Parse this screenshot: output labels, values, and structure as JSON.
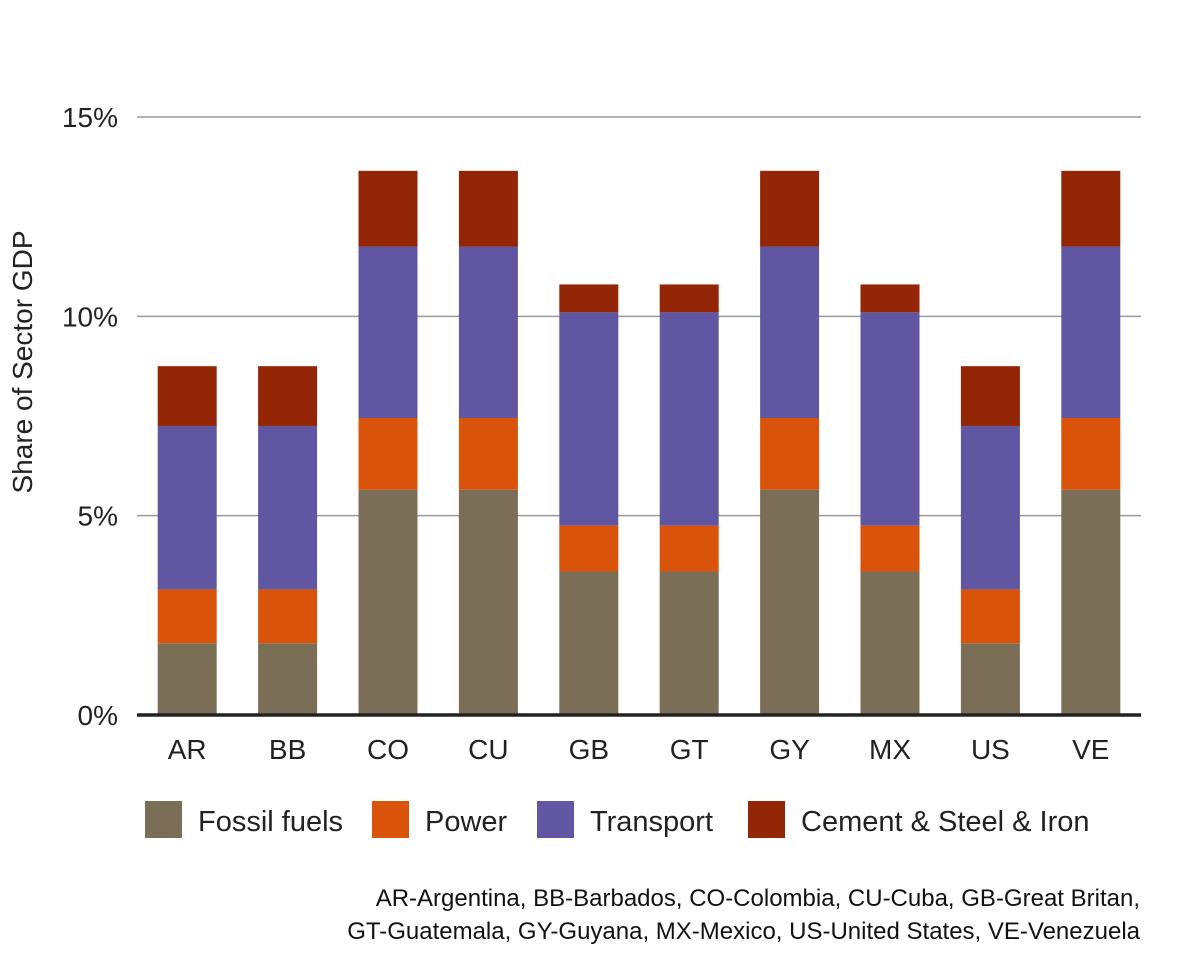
{
  "chart_data": {
    "type": "bar",
    "stacked": true,
    "categories": [
      "AR",
      "BB",
      "CO",
      "CU",
      "GB",
      "GT",
      "GY",
      "MX",
      "US",
      "VE"
    ],
    "series": [
      {
        "name": "Fossil fuels",
        "color": "#7b6e57",
        "values": [
          1.8,
          1.8,
          5.65,
          5.65,
          3.6,
          3.6,
          5.65,
          3.6,
          1.8,
          5.65
        ]
      },
      {
        "name": "Power",
        "color": "#d9540a",
        "values": [
          1.35,
          1.35,
          1.8,
          1.8,
          1.15,
          1.15,
          1.8,
          1.15,
          1.35,
          1.8
        ]
      },
      {
        "name": "Transport",
        "color": "#6156a2",
        "values": [
          4.1,
          4.1,
          4.3,
          4.3,
          5.35,
          5.35,
          4.3,
          5.35,
          4.1,
          4.3
        ]
      },
      {
        "name": "Cement & Steel & Iron",
        "color": "#922607",
        "values": [
          1.5,
          1.5,
          1.9,
          1.9,
          0.7,
          0.7,
          1.9,
          0.7,
          1.5,
          1.9
        ]
      }
    ],
    "title": "",
    "xlabel": "",
    "ylabel": "Share of Sector GDP",
    "ylim": [
      0,
      15
    ],
    "yticks": [
      0,
      5,
      10,
      15
    ],
    "ytick_labels": [
      "0%",
      "5%",
      "10%",
      "15%"
    ],
    "grid": true,
    "legend_position": "bottom"
  },
  "footnote": {
    "line1": "AR-Argentina, BB-Barbados, CO-Colombia, CU-Cuba, GB-Great Britan,",
    "line2": "GT-Guatemala, GY-Guyana, MX-Mexico, US-United States, VE-Venezuela"
  }
}
